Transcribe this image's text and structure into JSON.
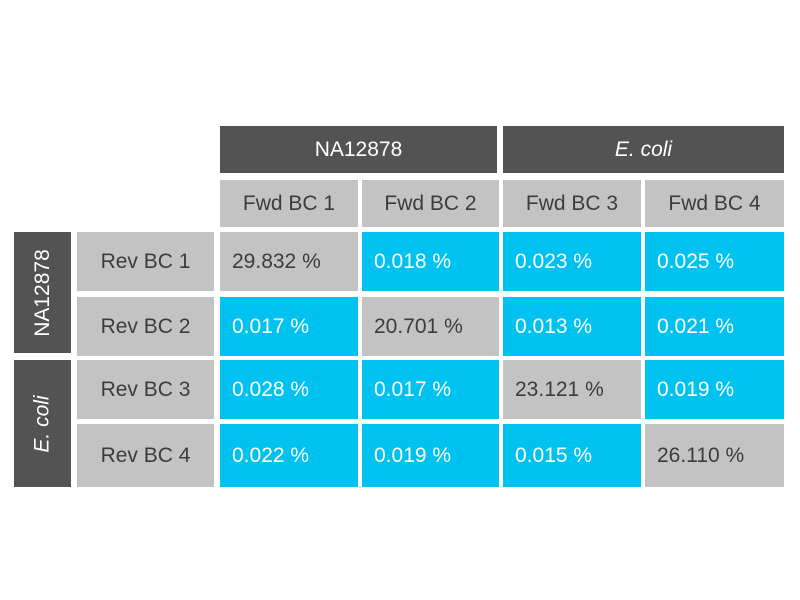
{
  "chart_data": {
    "type": "table",
    "column_groups": [
      {
        "label": "NA12878",
        "italic": false
      },
      {
        "label": "E. coli",
        "italic": true
      }
    ],
    "row_groups": [
      {
        "label": "NA12878",
        "italic": false
      },
      {
        "label": "E. coli",
        "italic": true
      }
    ],
    "columns": [
      "Fwd BC 1",
      "Fwd BC 2",
      "Fwd BC 3",
      "Fwd BC 4"
    ],
    "rows": [
      "Rev BC 1",
      "Rev BC 2",
      "Rev BC 3",
      "Rev BC 4"
    ],
    "values": [
      [
        "29.832 %",
        "0.018 %",
        "0.023 %",
        "0.025 %"
      ],
      [
        "0.017 %",
        "20.701 %",
        "0.013 %",
        "0.021 %"
      ],
      [
        "0.028 %",
        "0.017 %",
        "23.121 %",
        "0.019 %"
      ],
      [
        "0.022 %",
        "0.019 %",
        "0.015 %",
        "26.110 %"
      ]
    ]
  },
  "colors": {
    "group_header": "#535353",
    "label_cell": "#c3c3c3",
    "diagonal_cell": "#c3c3c3",
    "off_diagonal_cell": "#00c2f1"
  }
}
